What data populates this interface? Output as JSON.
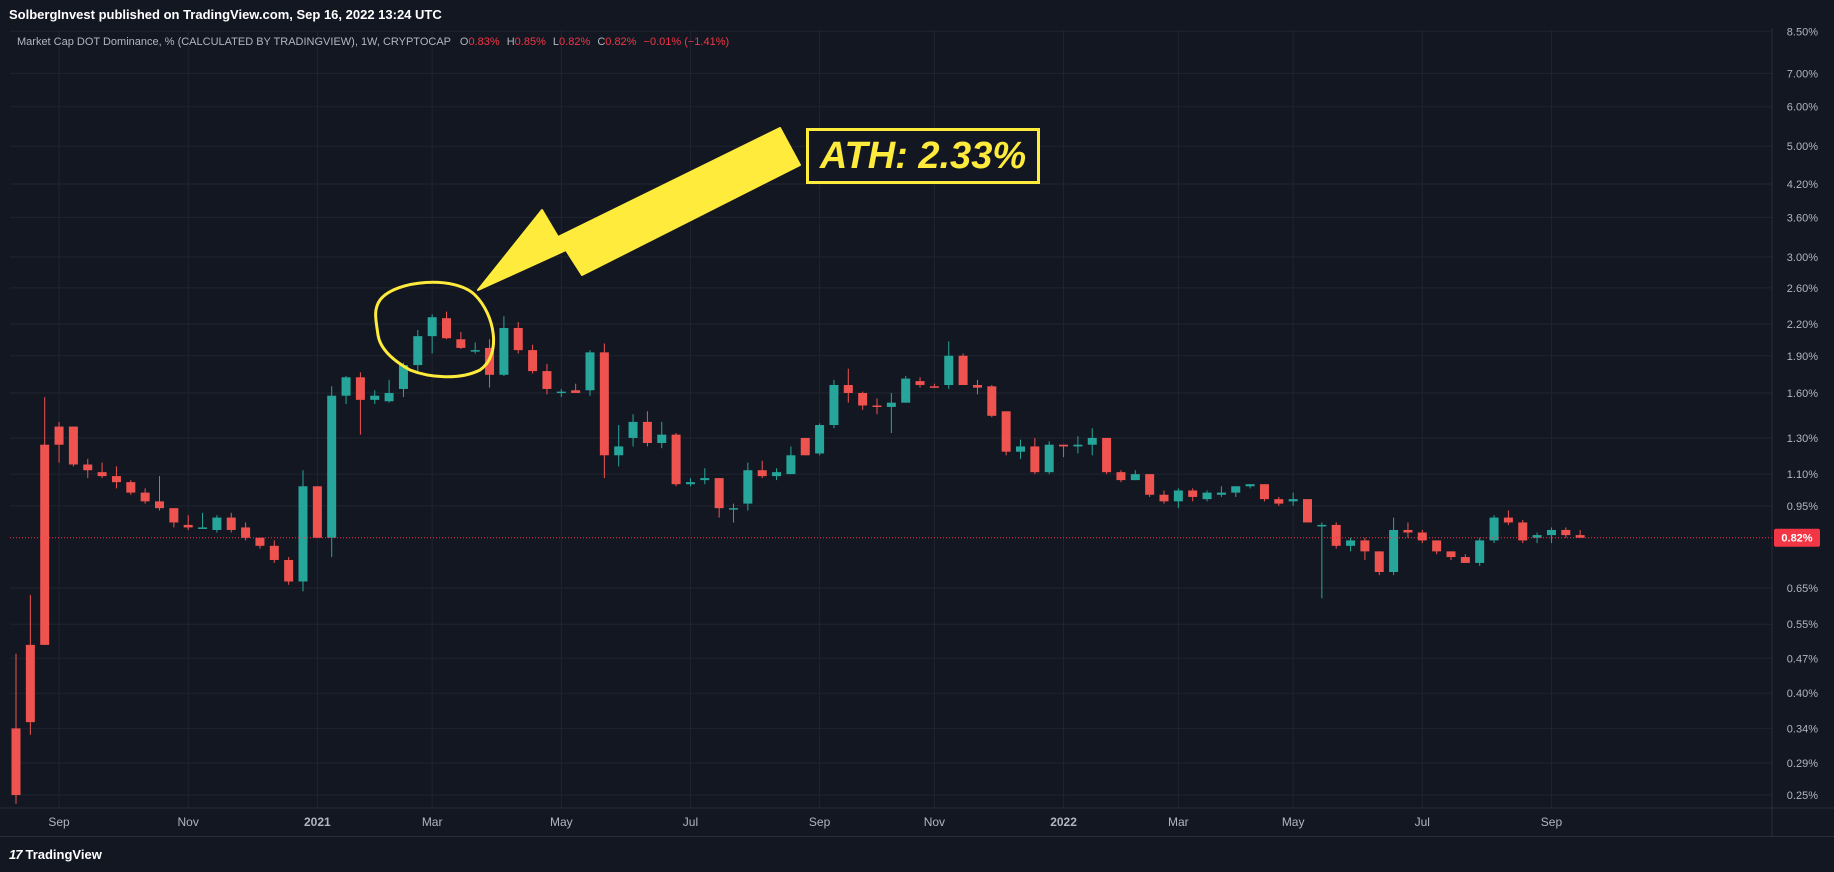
{
  "header": {
    "publisher": "SolbergInvest published on TradingView.com, Sep 16, 2022 13:24 UTC"
  },
  "legend": {
    "symbol": "Market Cap DOT Dominance, % (CALCULATED BY TRADINGVIEW), 1W, CRYPTOCAP",
    "o_label": "O",
    "o_value": "0.83%",
    "h_label": "H",
    "h_value": "0.85%",
    "l_label": "L",
    "l_value": "0.82%",
    "c_label": "C",
    "c_value": "0.82%",
    "change": "−0.01% (−1.41%)"
  },
  "annotation": {
    "text": "ATH: 2.33%"
  },
  "footer": {
    "brand": "TradingView",
    "logo_mark": "17"
  },
  "colors": {
    "up": "#26a69a",
    "down": "#ef5350",
    "annotation": "#ffeb3b",
    "background": "#131722",
    "grid": "#1f2430",
    "price_badge": "#f23645"
  },
  "chart_data": {
    "type": "candlestick",
    "y_axis": {
      "scale": "log",
      "unit": "%",
      "ticks": [
        "8.50%",
        "7.00%",
        "6.00%",
        "5.00%",
        "4.20%",
        "3.60%",
        "3.00%",
        "2.60%",
        "2.20%",
        "1.90%",
        "1.60%",
        "1.30%",
        "1.10%",
        "0.95%",
        "0.65%",
        "0.55%",
        "0.47%",
        "0.40%",
        "0.34%",
        "0.29%",
        "0.25%"
      ]
    },
    "x_axis": {
      "ticks": [
        {
          "label": "Sep",
          "index": 3
        },
        {
          "label": "Nov",
          "index": 12
        },
        {
          "label": "2021",
          "index": 21
        },
        {
          "label": "Mar",
          "index": 29
        },
        {
          "label": "May",
          "index": 38
        },
        {
          "label": "Jul",
          "index": 47
        },
        {
          "label": "Sep",
          "index": 56
        },
        {
          "label": "Nov",
          "index": 64
        },
        {
          "label": "2022",
          "index": 73
        },
        {
          "label": "Mar",
          "index": 81
        },
        {
          "label": "May",
          "index": 89
        },
        {
          "label": "Jul",
          "index": 98
        },
        {
          "label": "Sep",
          "index": 107
        }
      ]
    },
    "last_price": "0.82%",
    "candles": [
      [
        0.34,
        0.48,
        0.24,
        0.25
      ],
      [
        0.5,
        0.63,
        0.33,
        0.35
      ],
      [
        1.26,
        1.57,
        0.5,
        0.5
      ],
      [
        1.37,
        1.4,
        1.16,
        1.26
      ],
      [
        1.37,
        1.37,
        1.14,
        1.15
      ],
      [
        1.15,
        1.18,
        1.08,
        1.12
      ],
      [
        1.11,
        1.16,
        1.08,
        1.09
      ],
      [
        1.09,
        1.14,
        1.03,
        1.06
      ],
      [
        1.06,
        1.07,
        1.0,
        1.01
      ],
      [
        1.01,
        1.03,
        0.96,
        0.97
      ],
      [
        0.97,
        1.09,
        0.93,
        0.94
      ],
      [
        0.94,
        0.94,
        0.86,
        0.88
      ],
      [
        0.87,
        0.91,
        0.85,
        0.86
      ],
      [
        0.86,
        0.92,
        0.86,
        0.86
      ],
      [
        0.85,
        0.91,
        0.84,
        0.9
      ],
      [
        0.9,
        0.92,
        0.84,
        0.85
      ],
      [
        0.86,
        0.88,
        0.81,
        0.82
      ],
      [
        0.82,
        0.82,
        0.78,
        0.79
      ],
      [
        0.79,
        0.81,
        0.73,
        0.74
      ],
      [
        0.74,
        0.75,
        0.66,
        0.67
      ],
      [
        0.67,
        1.12,
        0.64,
        1.04
      ],
      [
        1.04,
        1.04,
        0.82,
        0.82
      ],
      [
        0.82,
        1.65,
        0.75,
        1.58
      ],
      [
        1.58,
        1.73,
        1.52,
        1.72
      ],
      [
        1.72,
        1.76,
        1.32,
        1.55
      ],
      [
        1.55,
        1.62,
        1.52,
        1.58
      ],
      [
        1.54,
        1.7,
        1.53,
        1.6
      ],
      [
        1.63,
        1.84,
        1.57,
        1.82
      ],
      [
        1.82,
        2.14,
        1.76,
        2.08
      ],
      [
        2.08,
        2.3,
        1.92,
        2.27
      ],
      [
        2.26,
        2.33,
        2.05,
        2.06
      ],
      [
        2.05,
        2.12,
        1.96,
        1.97
      ],
      [
        1.95,
        2.02,
        1.92,
        1.95
      ],
      [
        1.97,
        2.05,
        1.64,
        1.74
      ],
      [
        1.74,
        2.28,
        1.73,
        2.16
      ],
      [
        2.16,
        2.22,
        1.92,
        1.95
      ],
      [
        1.95,
        2.0,
        1.75,
        1.77
      ],
      [
        1.77,
        1.83,
        1.59,
        1.63
      ],
      [
        1.6,
        1.63,
        1.57,
        1.61
      ],
      [
        1.62,
        1.67,
        1.6,
        1.6
      ],
      [
        1.62,
        1.95,
        1.58,
        1.93
      ],
      [
        1.93,
        2.01,
        1.08,
        1.2
      ],
      [
        1.2,
        1.38,
        1.14,
        1.25
      ],
      [
        1.3,
        1.45,
        1.25,
        1.4
      ],
      [
        1.4,
        1.47,
        1.25,
        1.27
      ],
      [
        1.27,
        1.4,
        1.24,
        1.32
      ],
      [
        1.32,
        1.33,
        1.04,
        1.05
      ],
      [
        1.05,
        1.08,
        1.04,
        1.06
      ],
      [
        1.07,
        1.13,
        1.05,
        1.08
      ],
      [
        1.08,
        1.08,
        0.9,
        0.94
      ],
      [
        0.94,
        0.96,
        0.88,
        0.94
      ],
      [
        0.96,
        1.16,
        0.93,
        1.12
      ],
      [
        1.12,
        1.17,
        1.08,
        1.09
      ],
      [
        1.09,
        1.13,
        1.07,
        1.11
      ],
      [
        1.1,
        1.25,
        1.1,
        1.2
      ],
      [
        1.3,
        1.3,
        1.2,
        1.2
      ],
      [
        1.21,
        1.39,
        1.2,
        1.38
      ],
      [
        1.38,
        1.7,
        1.36,
        1.66
      ],
      [
        1.66,
        1.79,
        1.53,
        1.6
      ],
      [
        1.6,
        1.61,
        1.48,
        1.51
      ],
      [
        1.51,
        1.56,
        1.45,
        1.5
      ],
      [
        1.5,
        1.6,
        1.33,
        1.53
      ],
      [
        1.53,
        1.73,
        1.53,
        1.71
      ],
      [
        1.69,
        1.72,
        1.64,
        1.66
      ],
      [
        1.65,
        1.67,
        1.64,
        1.64
      ],
      [
        1.66,
        2.03,
        1.63,
        1.9
      ],
      [
        1.9,
        1.92,
        1.66,
        1.66
      ],
      [
        1.66,
        1.7,
        1.59,
        1.64
      ],
      [
        1.65,
        1.66,
        1.43,
        1.44
      ],
      [
        1.47,
        1.47,
        1.2,
        1.22
      ],
      [
        1.22,
        1.29,
        1.18,
        1.25
      ],
      [
        1.25,
        1.3,
        1.1,
        1.11
      ],
      [
        1.11,
        1.28,
        1.1,
        1.26
      ],
      [
        1.26,
        1.26,
        1.19,
        1.25
      ],
      [
        1.25,
        1.31,
        1.21,
        1.26
      ],
      [
        1.26,
        1.36,
        1.2,
        1.3
      ],
      [
        1.3,
        1.3,
        1.1,
        1.11
      ],
      [
        1.11,
        1.12,
        1.06,
        1.07
      ],
      [
        1.07,
        1.12,
        1.07,
        1.1
      ],
      [
        1.1,
        1.1,
        0.99,
        1.0
      ],
      [
        1.0,
        1.02,
        0.96,
        0.97
      ],
      [
        0.97,
        1.03,
        0.94,
        1.02
      ],
      [
        1.02,
        1.03,
        0.97,
        0.99
      ],
      [
        0.98,
        1.02,
        0.97,
        1.01
      ],
      [
        1.0,
        1.04,
        0.99,
        1.01
      ],
      [
        1.01,
        1.04,
        0.99,
        1.04
      ],
      [
        1.04,
        1.05,
        1.03,
        1.05
      ],
      [
        1.05,
        1.05,
        0.97,
        0.98
      ],
      [
        0.98,
        0.99,
        0.95,
        0.96
      ],
      [
        0.97,
        1.01,
        0.95,
        0.98
      ],
      [
        0.98,
        0.98,
        0.88,
        0.88
      ],
      [
        0.87,
        0.88,
        0.62,
        0.87
      ],
      [
        0.87,
        0.88,
        0.78,
        0.79
      ],
      [
        0.79,
        0.82,
        0.77,
        0.81
      ],
      [
        0.81,
        0.82,
        0.74,
        0.77
      ],
      [
        0.77,
        0.77,
        0.69,
        0.7
      ],
      [
        0.7,
        0.9,
        0.69,
        0.85
      ],
      [
        0.85,
        0.88,
        0.82,
        0.84
      ],
      [
        0.84,
        0.85,
        0.8,
        0.81
      ],
      [
        0.81,
        0.81,
        0.76,
        0.77
      ],
      [
        0.77,
        0.77,
        0.74,
        0.75
      ],
      [
        0.75,
        0.76,
        0.73,
        0.73
      ],
      [
        0.73,
        0.82,
        0.72,
        0.81
      ],
      [
        0.81,
        0.91,
        0.8,
        0.9
      ],
      [
        0.9,
        0.93,
        0.87,
        0.88
      ],
      [
        0.88,
        0.89,
        0.8,
        0.81
      ],
      [
        0.82,
        0.84,
        0.8,
        0.83
      ],
      [
        0.83,
        0.86,
        0.8,
        0.85
      ],
      [
        0.85,
        0.86,
        0.82,
        0.83
      ],
      [
        0.83,
        0.85,
        0.82,
        0.82
      ]
    ]
  }
}
